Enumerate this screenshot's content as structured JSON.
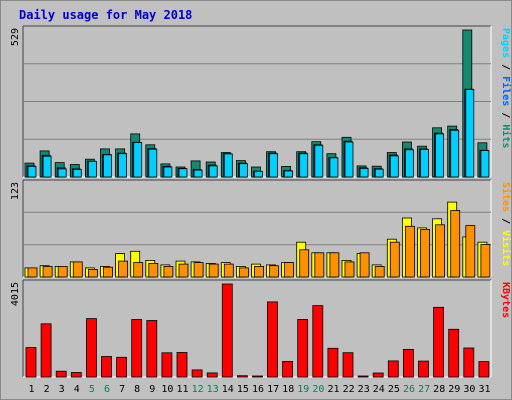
{
  "chart_data": {
    "type": "bar",
    "title": "Daily usage for May 2018",
    "colors": {
      "background": "#c0c0c0",
      "title": "#0000cc",
      "hits": "#128a6e",
      "files": "#0063ff",
      "pages": "#00d0ff",
      "visits": "#ffff00",
      "sites": "#ff9000",
      "kbytes": "#ff0000",
      "weekend_day_label": "#008060",
      "weekday_label": "#000000",
      "gridline": "#808080"
    },
    "days": [
      "1",
      "2",
      "3",
      "4",
      "5",
      "6",
      "7",
      "8",
      "9",
      "10",
      "11",
      "12",
      "13",
      "14",
      "15",
      "16",
      "17",
      "18",
      "19",
      "20",
      "21",
      "22",
      "23",
      "24",
      "25",
      "26",
      "27",
      "28",
      "29",
      "30",
      "31"
    ],
    "weekend_days": [
      "5",
      "6",
      "12",
      "13",
      "19",
      "20",
      "26",
      "27"
    ],
    "panels": {
      "top": {
        "ymax": 529,
        "ymax_label": "529",
        "legend": [
          {
            "text": "Pages",
            "color": "#00d0ff"
          },
          {
            "text": " / ",
            "color": "#000000"
          },
          {
            "text": "Files",
            "color": "#0063ff"
          },
          {
            "text": " / ",
            "color": "#000000"
          },
          {
            "text": "Hits",
            "color": "#128a6e"
          }
        ],
        "series": [
          {
            "name": "Hits",
            "values": [
              50,
              94,
              52,
              45,
              64,
              101,
              101,
              155,
              116,
              47,
              36,
              58,
              54,
              88,
              59,
              36,
              91,
              38,
              91,
              127,
              84,
              143,
              40,
              39,
              88,
              126,
              111,
              177,
              183,
              529,
              123
            ]
          },
          {
            "name": "Files",
            "values": [
              40,
              78,
              33,
              29,
              57,
              81,
              86,
              125,
              102,
              38,
              31,
              27,
              43,
              84,
              50,
              21,
              86,
              23,
              86,
              116,
              70,
              129,
              33,
              30,
              79,
              101,
              101,
              158,
              171,
              316,
              96
            ]
          },
          {
            "name": "Pages",
            "values": [
              38,
              75,
              29,
              27,
              56,
              80,
              84,
              124,
              100,
              36,
              30,
              25,
              40,
              83,
              48,
              20,
              84,
              22,
              84,
              114,
              69,
              126,
              31,
              28,
              76,
              98,
              99,
              155,
              168,
              315,
              95
            ]
          }
        ]
      },
      "middle": {
        "ymax": 123,
        "ymax_label": "123",
        "legend": [
          {
            "text": "Sites",
            "color": "#ff9000"
          },
          {
            "text": " / ",
            "color": "#000000"
          },
          {
            "text": "Visits",
            "color": "#ffff00"
          }
        ],
        "series": [
          {
            "name": "Visits",
            "values": [
              12,
              15,
              14,
              20,
              12,
              14,
              31,
              34,
              22,
              16,
              21,
              20,
              18,
              19,
              14,
              17,
              16,
              19,
              46,
              32,
              32,
              22,
              31,
              16,
              50,
              78,
              65,
              77,
              99,
              53,
              46
            ]
          },
          {
            "name": "Sites",
            "values": [
              12,
              14,
              14,
              20,
              10,
              13,
              21,
              19,
              18,
              14,
              17,
              19,
              17,
              17,
              12,
              14,
              15,
              19,
              36,
              32,
              32,
              20,
              32,
              14,
              46,
              67,
              63,
              69,
              88,
              68,
              43
            ]
          }
        ]
      },
      "bottom": {
        "ymax": 4015,
        "ymax_label": "4015",
        "legend": [
          {
            "text": "KBytes",
            "color": "#ff0000"
          }
        ],
        "series": [
          {
            "name": "KBytes",
            "values": [
              1269,
              2297,
              249,
              196,
              2520,
              883,
              852,
              2483,
              2438,
              1043,
              1059,
              305,
              175,
              4015,
              56,
              43,
              3242,
              674,
              2486,
              3083,
              1237,
              1050,
              42,
              174,
              693,
              1190,
              686,
              3011,
              2060,
              1252,
              665
            ]
          }
        ]
      }
    }
  }
}
